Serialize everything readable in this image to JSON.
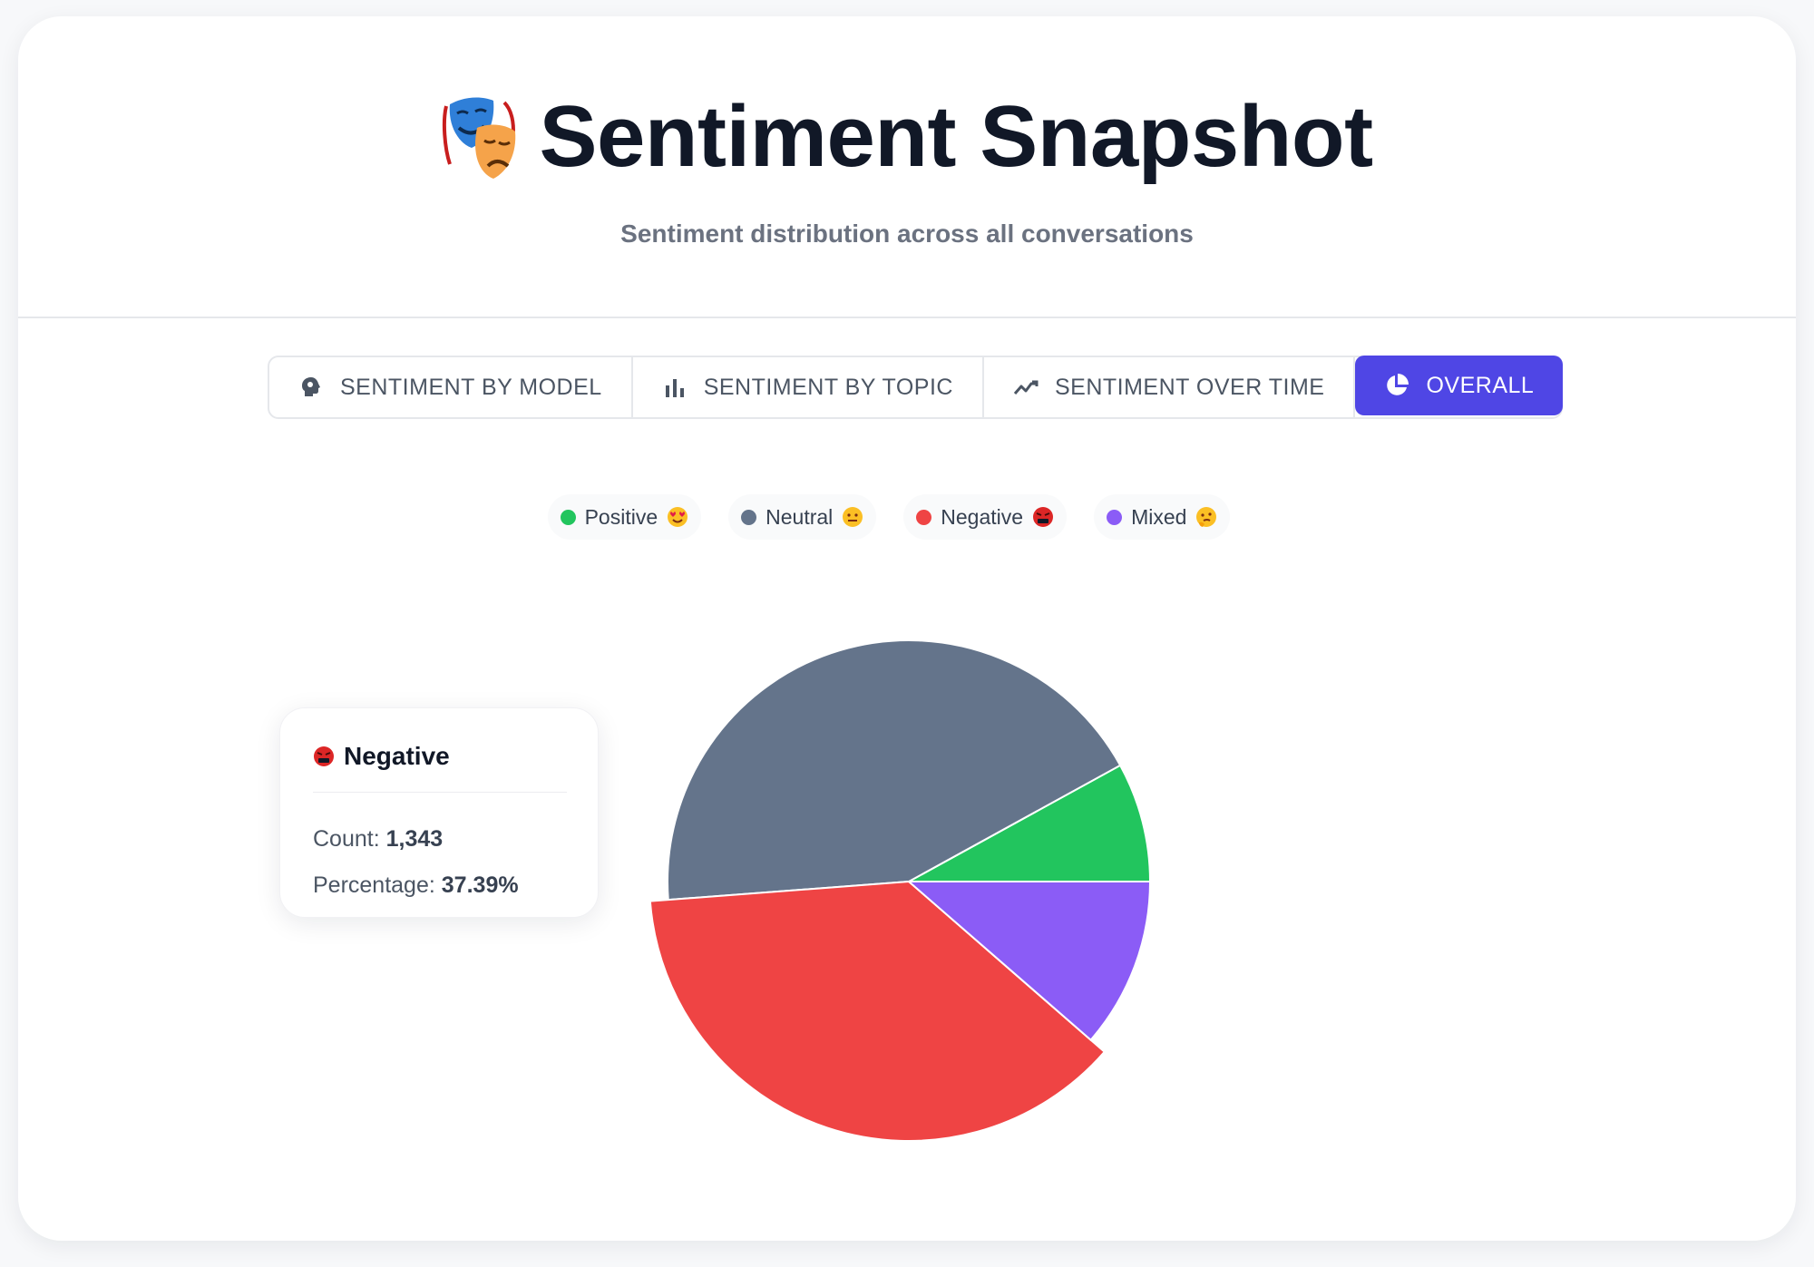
{
  "header": {
    "title": "Sentiment Snapshot",
    "subtitle": "Sentiment distribution across all conversations",
    "icon": "theater-masks-icon"
  },
  "tabs": [
    {
      "label": "SENTIMENT BY MODEL",
      "icon": "brain-head-icon",
      "active": false
    },
    {
      "label": "SENTIMENT BY TOPIC",
      "icon": "bar-chart-icon",
      "active": false
    },
    {
      "label": "SENTIMENT OVER TIME",
      "icon": "trend-line-icon",
      "active": false
    },
    {
      "label": "OVERALL",
      "icon": "pie-chart-icon",
      "active": true
    }
  ],
  "colors": {
    "accent": "#4f46e5",
    "positive": "#22c55e",
    "neutral": "#64748b",
    "negative": "#ef4444",
    "mixed": "#8b5cf6"
  },
  "legend": [
    {
      "label": "Positive",
      "color": "#22c55e",
      "emoji": "heart-eyes-emoji"
    },
    {
      "label": "Neutral",
      "color": "#64748b",
      "emoji": "neutral-face-emoji"
    },
    {
      "label": "Negative",
      "color": "#ef4444",
      "emoji": "cursing-face-emoji"
    },
    {
      "label": "Mixed",
      "color": "#8b5cf6",
      "emoji": "thinking-face-emoji"
    }
  ],
  "chart_data": {
    "type": "pie",
    "categories": [
      "Positive",
      "Neutral",
      "Negative",
      "Mixed"
    ],
    "values": [
      8.0,
      43.2,
      37.39,
      11.4
    ],
    "colors": [
      "#22c55e",
      "#64748b",
      "#ef4444",
      "#8b5cf6"
    ],
    "highlighted": "Negative",
    "legend_position": "top"
  },
  "tooltip": {
    "label": "Negative",
    "count_label": "Count:",
    "count": "1,343",
    "percentage_label": "Percentage:",
    "percentage": "37.39%"
  }
}
